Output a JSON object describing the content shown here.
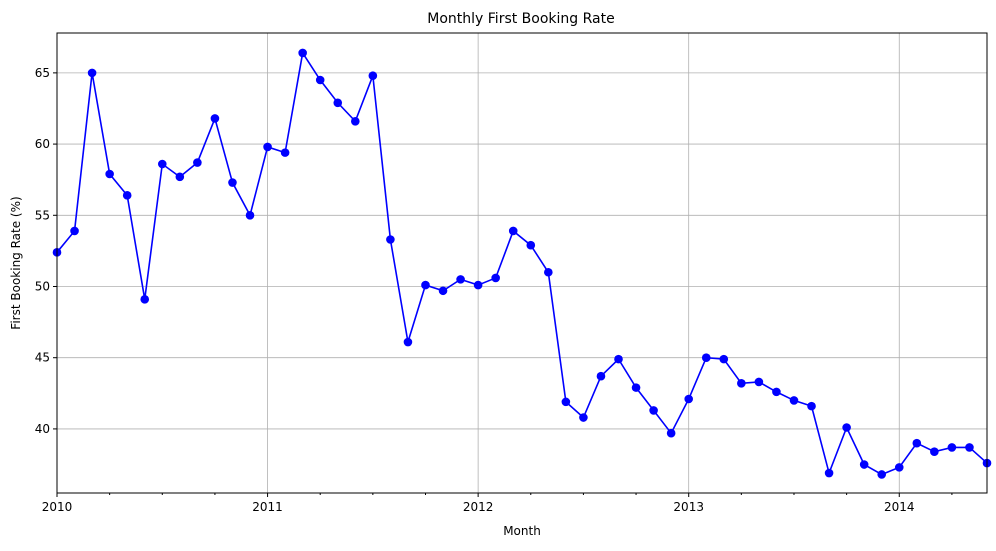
{
  "chart_data": {
    "type": "line",
    "title": "Monthly First Booking Rate",
    "xlabel": "Month",
    "ylabel": "First Booking Rate (%)",
    "ylim": [
      35.5,
      67.8
    ],
    "xlim": [
      "2010-01",
      "2014-06"
    ],
    "grid": true,
    "line_color": "#0000ff",
    "marker": "circle",
    "x_ticks": [
      "2010",
      "2011",
      "2012",
      "2013",
      "2014"
    ],
    "y_ticks": [
      40,
      45,
      50,
      55,
      60,
      65
    ],
    "series": [
      {
        "x": [
          "2010-01",
          "2010-02",
          "2010-03",
          "2010-04",
          "2010-05",
          "2010-06",
          "2010-07",
          "2010-08",
          "2010-09",
          "2010-10",
          "2010-11",
          "2010-12",
          "2011-01",
          "2011-02",
          "2011-03",
          "2011-04",
          "2011-05",
          "2011-06",
          "2011-07",
          "2011-08",
          "2011-09",
          "2011-10",
          "2011-11",
          "2011-12",
          "2012-01",
          "2012-02",
          "2012-03",
          "2012-04",
          "2012-05",
          "2012-06",
          "2012-07",
          "2012-08",
          "2012-09",
          "2012-10",
          "2012-11",
          "2012-12",
          "2013-01",
          "2013-02",
          "2013-03",
          "2013-04",
          "2013-05",
          "2013-06",
          "2013-07",
          "2013-08",
          "2013-09",
          "2013-10",
          "2013-11",
          "2013-12",
          "2014-01",
          "2014-02",
          "2014-03",
          "2014-04",
          "2014-05",
          "2014-06"
        ],
        "values": [
          52.4,
          53.9,
          65.0,
          57.9,
          56.4,
          49.1,
          58.6,
          57.7,
          58.7,
          61.8,
          57.3,
          55.0,
          59.8,
          59.4,
          66.4,
          64.5,
          62.9,
          61.6,
          64.8,
          53.3,
          46.1,
          50.1,
          49.7,
          50.5,
          50.1,
          50.6,
          53.9,
          52.9,
          51.0,
          41.9,
          40.8,
          43.7,
          44.9,
          42.9,
          41.3,
          39.7,
          42.1,
          45.0,
          44.9,
          43.2,
          43.3,
          42.6,
          42.0,
          41.6,
          36.9,
          40.1,
          37.5,
          36.8,
          37.3,
          39.0,
          38.4,
          38.7,
          38.7,
          37.6
        ]
      }
    ]
  }
}
